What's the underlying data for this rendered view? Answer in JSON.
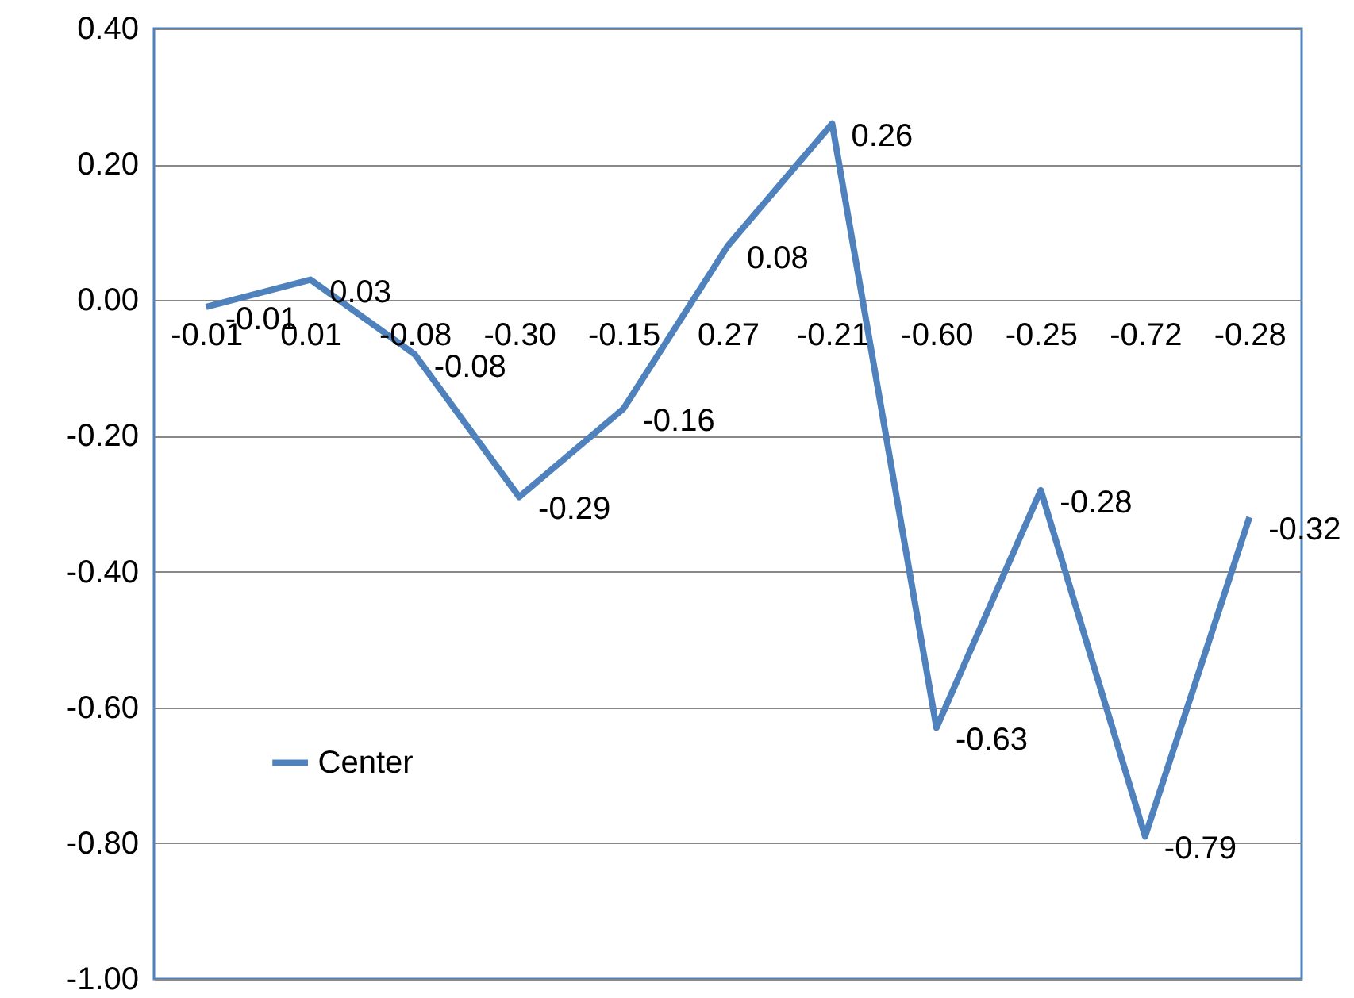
{
  "chart_data": {
    "type": "line",
    "categories": [
      "-0.01",
      "0.01",
      "-0.08",
      "-0.30",
      "-0.15",
      "0.27",
      "-0.21",
      "-0.60",
      "-0.25",
      "-0.72",
      "-0.28"
    ],
    "series": [
      {
        "name": "Center",
        "color": "#4f81bd",
        "values": [
          -0.01,
          0.03,
          -0.08,
          -0.29,
          -0.16,
          0.08,
          0.26,
          -0.63,
          -0.28,
          -0.79,
          -0.32
        ]
      }
    ],
    "ylim": [
      -1.0,
      0.4
    ],
    "yticks": [
      {
        "value": -1.0,
        "label": "-1.00"
      },
      {
        "value": -0.8,
        "label": "-0.80"
      },
      {
        "value": -0.6,
        "label": "-0.60"
      },
      {
        "value": -0.4,
        "label": "-0.40"
      },
      {
        "value": -0.2,
        "label": "-0.20"
      },
      {
        "value": 0,
        "label": "0.00"
      },
      {
        "value": 0.2,
        "label": "0.20"
      },
      {
        "value": 0.4,
        "label": "0.40"
      }
    ],
    "grid": "y",
    "legend": "bottom left",
    "data_labels": true,
    "marker": "none",
    "line_style": "solid"
  }
}
